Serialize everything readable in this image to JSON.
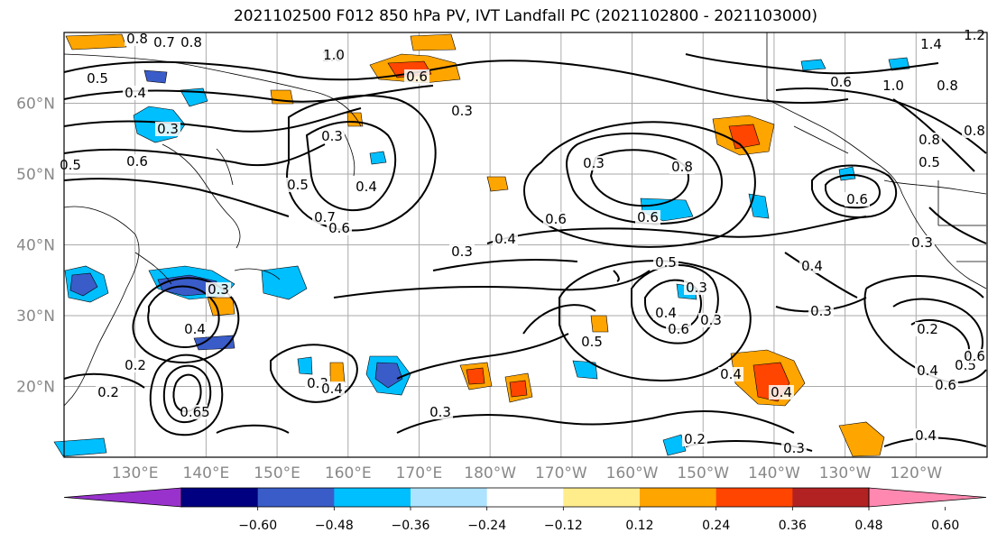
{
  "title": "2021102500 F012 850 hPa PV, IVT Landfall PC (2021102800 - 2021103000)",
  "map": {
    "lon_range": [
      120,
      250
    ],
    "lat_range": [
      10,
      70
    ],
    "lat_ticks": [
      "20°N",
      "30°N",
      "40°N",
      "50°N",
      "60°N"
    ],
    "lon_ticks": [
      "130°E",
      "140°E",
      "150°E",
      "160°E",
      "170°E",
      "180°W",
      "170°W",
      "160°W",
      "150°W",
      "140°W",
      "130°W",
      "120°W"
    ],
    "grid": true
  },
  "contour_labels": [
    "0.8",
    "0.7",
    "0.8",
    "1.0",
    "0.6",
    "0.5",
    "0.4",
    "0.3",
    "0.5",
    "0.6",
    "0.3",
    "0.4",
    "0.5",
    "0.7",
    "0.6",
    "0.3",
    "0.4",
    "0.6",
    "0.8",
    "0.6",
    "0.5",
    "0.4",
    "0.3",
    "0.3",
    "0.6",
    "0.5",
    "0.4",
    "0.4",
    "0.3",
    "0.2",
    "0.65",
    "0.3",
    "0.4",
    "0.3",
    "0.2",
    "0.2",
    "0.3",
    "0.4",
    "0.6",
    "0.5",
    "0.6",
    "0.4",
    "0.3",
    "0.4",
    "0.2",
    "0.3",
    "0.4",
    "0.6",
    "1.0",
    "0.3",
    "0.3",
    "1.2",
    "1.4",
    "0.6",
    "1.0",
    "0.8",
    "0.8",
    "0.5",
    "0.8"
  ],
  "colorbar": {
    "colors": [
      "#9932CC",
      "#000080",
      "#3A5CC9",
      "#00BFFF",
      "#ADE3FF",
      "#FFFFFF",
      "#FFEC8B",
      "#FFA500",
      "#FF4500",
      "#B22222",
      "#FF88B0"
    ],
    "tick_labels": [
      "−0.60",
      "−0.48",
      "−0.36",
      "−0.24",
      "−0.12",
      "0.12",
      "0.24",
      "0.36",
      "0.48",
      "0.60"
    ]
  }
}
